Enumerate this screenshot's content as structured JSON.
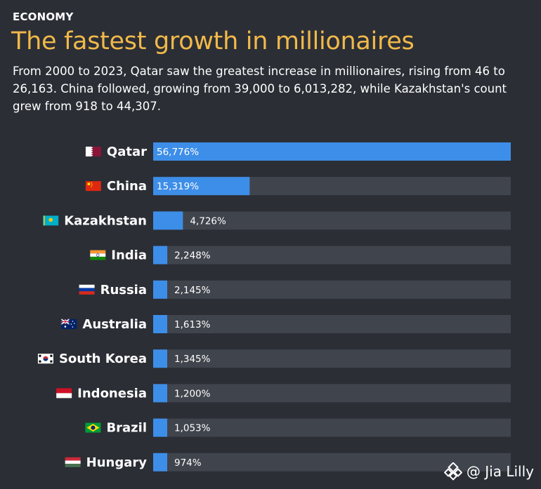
{
  "header": {
    "section": "ECONOMY",
    "title": "The fastest growth in millionaires",
    "subtitle": "From 2000 to 2023, Qatar saw the greatest increase in millionaires, rising from 46 to 26,163. China followed, growing from 39,000 to 6,013,282, while Kazakhstan's count grew from 918 to 44,307."
  },
  "watermark": {
    "text": "@ Jia Lilly"
  },
  "colors": {
    "background": "#2b2e35",
    "track": "#40444c",
    "bar": "#3d8ee8",
    "title": "#f1b94a"
  },
  "chart_data": {
    "type": "bar",
    "orientation": "horizontal",
    "categories": [
      "Qatar",
      "China",
      "Kazakhstan",
      "India",
      "Russia",
      "Australia",
      "South Korea",
      "Indonesia",
      "Brazil",
      "Hungary"
    ],
    "values": [
      56776,
      15319,
      4726,
      2248,
      2145,
      1613,
      1345,
      1200,
      1053,
      974
    ],
    "value_labels": [
      "56,776%",
      "15,319%",
      "4,726%",
      "2,248%",
      "2,145%",
      "1,613%",
      "1,345%",
      "1,200%",
      "1,053%",
      "974%"
    ],
    "flags": [
      "qatar-flag",
      "china-flag",
      "kazakhstan-flag",
      "india-flag",
      "russia-flag",
      "australia-flag",
      "south-korea-flag",
      "indonesia-flag",
      "brazil-flag",
      "hungary-flag"
    ],
    "title": "The fastest growth in millionaires",
    "xlabel": "",
    "ylabel": "",
    "xlim": [
      0,
      56776
    ],
    "grid": false,
    "legend": "none"
  }
}
